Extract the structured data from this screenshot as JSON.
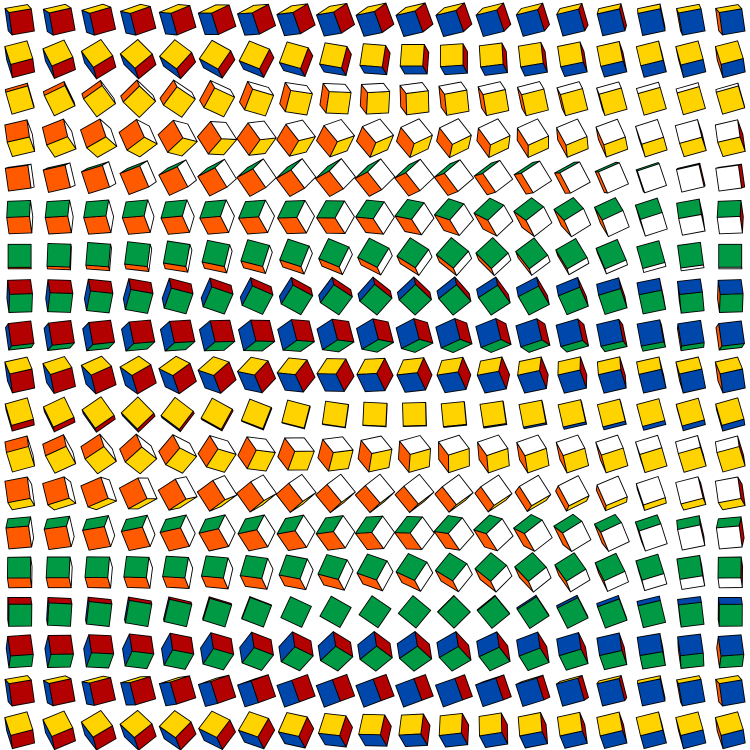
{
  "grid": {
    "rows": 19,
    "cols": 19
  },
  "face_colors": {
    "front": "#b30000",
    "top": "#ffd300",
    "back": "#ff5a00",
    "bottom": "#009a44",
    "left": "#0047ab",
    "right": "#ffffff"
  },
  "outline_color": "#000000",
  "background": "#ffffff"
}
